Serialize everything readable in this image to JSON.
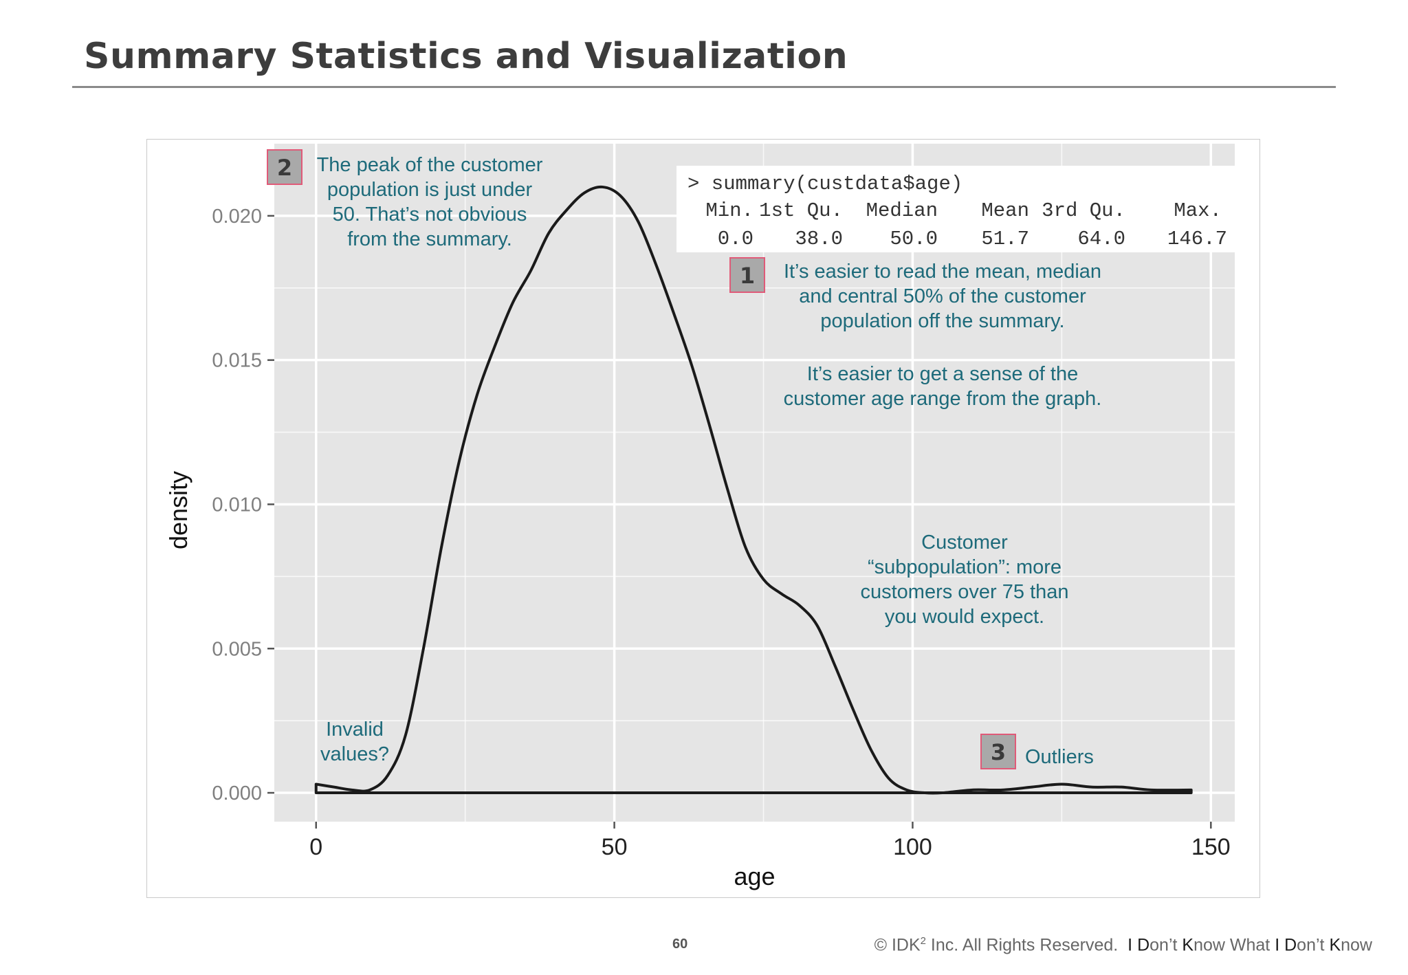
{
  "slide": {
    "title": "Summary Statistics and Visualization",
    "page_number": "60",
    "footer": {
      "copyright_a": "© IDK",
      "copyright_sup": "2",
      "copyright_b": " Inc. All Rights Reserved.",
      "tagline": [
        {
          "text": "I",
          "strong": true
        },
        {
          "text": " ",
          "strong": false
        },
        {
          "text": "D",
          "strong": true
        },
        {
          "text": "on’t ",
          "strong": false
        },
        {
          "text": "K",
          "strong": true
        },
        {
          "text": "now What ",
          "strong": false
        },
        {
          "text": "I",
          "strong": true
        },
        {
          "text": " ",
          "strong": false
        },
        {
          "text": "D",
          "strong": true
        },
        {
          "text": "on’t ",
          "strong": false
        },
        {
          "text": "K",
          "strong": true
        },
        {
          "text": "now",
          "strong": false
        }
      ]
    }
  },
  "chart_data": {
    "type": "area",
    "xlabel": "age",
    "ylabel": "density",
    "xlim": [
      -7,
      154
    ],
    "ylim": [
      -0.001,
      0.0225
    ],
    "x_ticks": [
      0,
      50,
      100,
      150
    ],
    "x_tick_labels": [
      "0",
      "50",
      "100",
      "150"
    ],
    "y_ticks": [
      0,
      0.005,
      0.01,
      0.015,
      0.02
    ],
    "y_tick_labels": [
      "0.000",
      "0.005",
      "0.010",
      "0.015",
      "0.020"
    ],
    "grid": true,
    "x": [
      0,
      3,
      6,
      9,
      12,
      15,
      18,
      21,
      24,
      27,
      30,
      33,
      36,
      39,
      42,
      45,
      48,
      51,
      54,
      57,
      60,
      63,
      66,
      69,
      72,
      75,
      78,
      81,
      84,
      87,
      90,
      93,
      96,
      99,
      102,
      105,
      110,
      115,
      120,
      125,
      130,
      135,
      140,
      146.7
    ],
    "density": [
      0.0003,
      0.0002,
      0.0001,
      0.0001,
      0.0006,
      0.002,
      0.005,
      0.0085,
      0.0115,
      0.0138,
      0.0155,
      0.017,
      0.0181,
      0.0194,
      0.0202,
      0.0208,
      0.021,
      0.0207,
      0.0198,
      0.0183,
      0.0166,
      0.0148,
      0.0127,
      0.0105,
      0.0085,
      0.0074,
      0.0069,
      0.0065,
      0.0058,
      0.0044,
      0.0029,
      0.0015,
      0.0005,
      0.0001,
      0,
      0,
      0.0001,
      0.0001,
      0.0002,
      0.0003,
      0.0002,
      0.0002,
      0.0001,
      0.0001
    ]
  },
  "summary_box": {
    "command": "> summary(custdata$age)",
    "headers": [
      "Min.",
      "1st Qu.",
      "Median",
      "Mean",
      "3rd Qu.",
      "Max."
    ],
    "values": [
      "0.0",
      "38.0",
      "50.0",
      "51.7",
      "64.0",
      "146.7"
    ]
  },
  "annotations": {
    "note1": {
      "badge": "1",
      "lines": [
        "It’s easier to read the mean, median",
        "and central 50% of the customer",
        "population off the summary."
      ]
    },
    "note1b": {
      "lines": [
        "It’s easier to get a sense of the",
        "customer age range from the graph."
      ]
    },
    "note2": {
      "badge": "2",
      "lines": [
        "The peak of the customer",
        "population is just under",
        "50. That’s not obvious",
        "from the summary."
      ]
    },
    "note3": {
      "badge": "3",
      "lines": [
        "Outliers"
      ]
    },
    "subpopulation": {
      "lines": [
        "Customer",
        "“subpopulation”: more",
        "customers over 75 than",
        "you would expect."
      ]
    },
    "invalid": {
      "lines": [
        "Invalid",
        "values?"
      ]
    }
  },
  "colors": {
    "panel_bg": "#e5e5e5",
    "grid": "#ffffff",
    "curve": "#1a1a1a",
    "annotation_text": "#1d6a7a",
    "badge_fill": "#a9a9a9",
    "badge_border": "#e05a78"
  }
}
